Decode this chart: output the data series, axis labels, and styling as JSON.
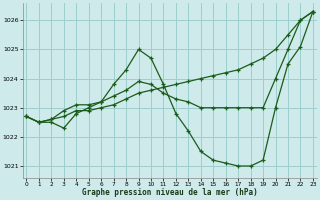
{
  "title": "Graphe pression niveau de la mer (hPa)",
  "bg_color": "#ceeaea",
  "grid_color": "#9ecece",
  "line_color": "#1a5c1a",
  "xlim": [
    -0.3,
    23.3
  ],
  "ylim": [
    1020.6,
    1026.6
  ],
  "yticks": [
    1021,
    1022,
    1023,
    1024,
    1025,
    1026
  ],
  "xticks": [
    0,
    1,
    2,
    3,
    4,
    5,
    6,
    7,
    8,
    9,
    10,
    11,
    12,
    13,
    14,
    15,
    16,
    17,
    18,
    19,
    20,
    21,
    22,
    23
  ],
  "series": [
    {
      "x": [
        0,
        1,
        2,
        3,
        4,
        5,
        6,
        7,
        8,
        9,
        10,
        11,
        12,
        13,
        14,
        15,
        16,
        17,
        18,
        19,
        20,
        21,
        22,
        23
      ],
      "y": [
        1022.7,
        1022.5,
        1022.6,
        1022.7,
        1022.9,
        1022.9,
        1023.0,
        1023.1,
        1023.3,
        1023.5,
        1023.6,
        1023.7,
        1023.8,
        1023.9,
        1024.0,
        1024.1,
        1024.2,
        1024.3,
        1024.5,
        1024.7,
        1025.0,
        1025.5,
        1026.0,
        1026.3
      ],
      "style": "solid",
      "marker": true
    },
    {
      "x": [
        0,
        1,
        2,
        3,
        4,
        5,
        6,
        7,
        8,
        9,
        10,
        11,
        12,
        13,
        14,
        15,
        16,
        17,
        18,
        19,
        20,
        21,
        22,
        23
      ],
      "y": [
        1022.7,
        1022.5,
        1022.5,
        1022.3,
        1022.8,
        1023.0,
        1023.2,
        1023.8,
        1024.3,
        1025.0,
        1024.7,
        1023.8,
        1022.8,
        1022.2,
        1021.5,
        1021.2,
        1021.1,
        1021.0,
        1021.0,
        1021.2,
        1023.0,
        1024.5,
        1025.1,
        1026.3
      ],
      "style": "solid",
      "marker": true
    },
    {
      "x": [
        0,
        1,
        2,
        3,
        4,
        5,
        6,
        7,
        8,
        9,
        10,
        11,
        12,
        13,
        14,
        15,
        16,
        17,
        18,
        19,
        20,
        21,
        22,
        23
      ],
      "y": [
        1022.7,
        1022.5,
        1022.6,
        1022.9,
        1023.1,
        1023.1,
        1023.2,
        1023.4,
        1023.6,
        1023.9,
        1023.8,
        1023.5,
        1023.3,
        1023.2,
        1023.0,
        1023.0,
        1023.0,
        1023.0,
        1023.0,
        1023.0,
        1024.0,
        1025.0,
        1026.0,
        1026.3
      ],
      "style": "solid",
      "marker": true
    }
  ]
}
